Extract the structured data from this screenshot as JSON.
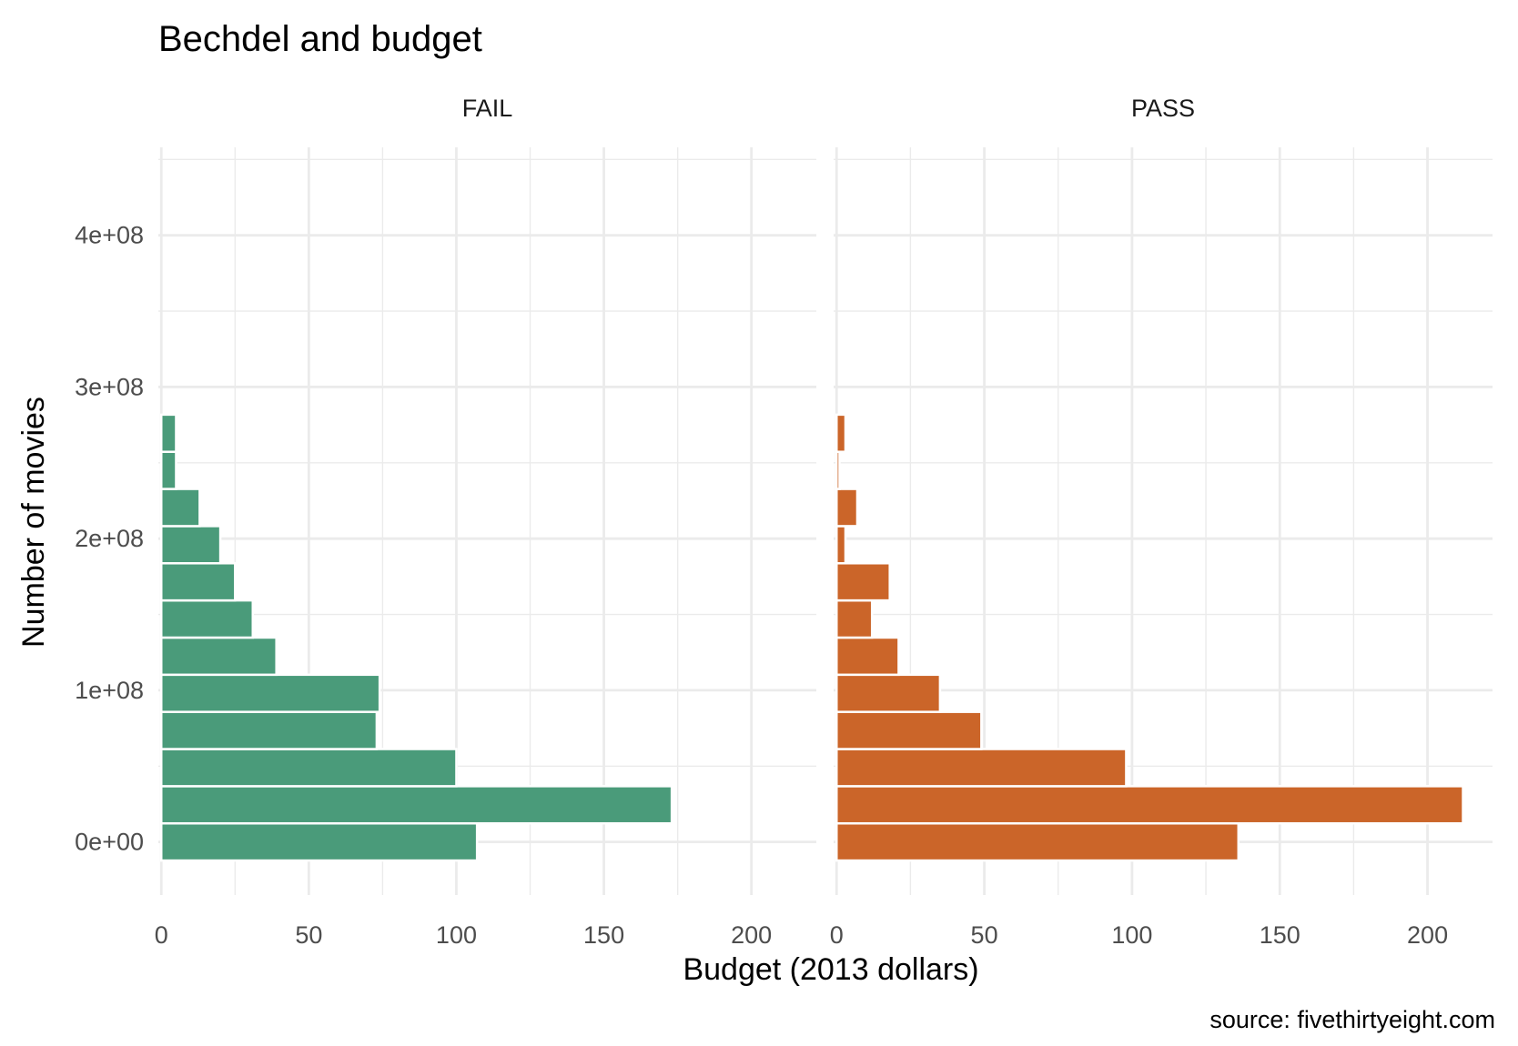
{
  "chart_data": {
    "type": "bar",
    "orientation": "horizontal",
    "title": "Bechdel and budget",
    "xlabel": "Budget (2013 dollars)",
    "ylabel": "Number of movies",
    "caption": "source: fivethirtyeight.com",
    "xlim": [
      -1,
      222
    ],
    "ylim": [
      -35000000,
      458000000
    ],
    "x_ticks": [
      0,
      50,
      100,
      150,
      200
    ],
    "y_ticks": [
      0,
      100000000,
      200000000,
      300000000,
      400000000
    ],
    "y_tick_labels": [
      "0e+00",
      "1e+08",
      "2e+08",
      "3e+08",
      "4e+08"
    ],
    "bin_width": 24500000,
    "bin_centers": [
      0,
      24500000,
      49000000,
      73500000,
      98000000,
      122500000,
      147000000,
      171500000,
      196000000,
      220500000,
      245000000,
      269500000
    ],
    "grid": true,
    "legend": "none",
    "panels": [
      {
        "name": "FAIL",
        "color": "#4a9b7a",
        "values": [
          107,
          173,
          100,
          73,
          74,
          39,
          31,
          25,
          20,
          13,
          5,
          5
        ]
      },
      {
        "name": "PASS",
        "color": "#cb6529",
        "values": [
          136,
          212,
          98,
          49,
          35,
          21,
          12,
          18,
          3,
          7,
          1,
          3
        ]
      }
    ]
  }
}
